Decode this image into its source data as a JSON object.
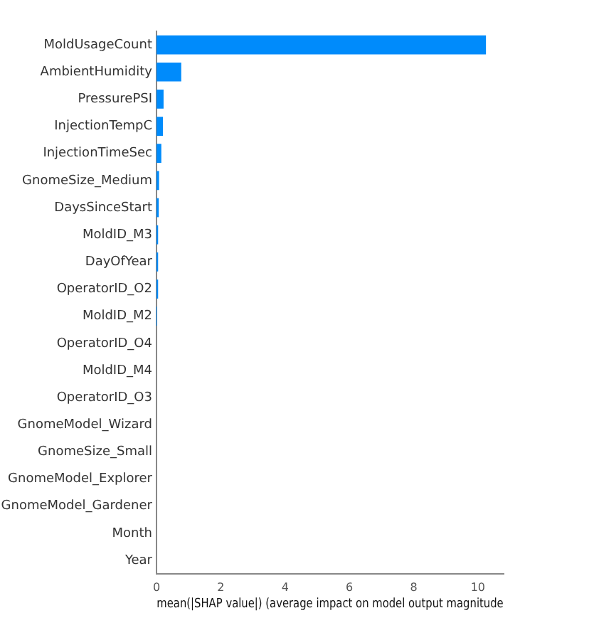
{
  "chart_data": {
    "type": "bar",
    "orientation": "horizontal",
    "xlabel": "mean(|SHAP value|) (average impact on model output magnitude",
    "categories": [
      "MoldUsageCount",
      "AmbientHumidity",
      "PressurePSI",
      "InjectionTempC",
      "InjectionTimeSec",
      "GnomeSize_Medium",
      "DaysSinceStart",
      "MoldID_M3",
      "DayOfYear",
      "OperatorID_O2",
      "MoldID_M2",
      "OperatorID_O4",
      "MoldID_M4",
      "OperatorID_O3",
      "GnomeModel_Wizard",
      "GnomeSize_Small",
      "GnomeModel_Explorer",
      "GnomeModel_Gardener",
      "Month",
      "Year"
    ],
    "values": [
      10.25,
      0.77,
      0.22,
      0.2,
      0.15,
      0.08,
      0.07,
      0.05,
      0.05,
      0.05,
      0.02,
      0,
      0,
      0,
      0,
      0,
      0,
      0,
      0,
      0
    ],
    "color": "#008bfb",
    "xlim": [
      0,
      10.8
    ],
    "xticks": [
      0,
      2,
      4,
      6,
      8,
      10
    ],
    "grid": false,
    "legend": false
  }
}
